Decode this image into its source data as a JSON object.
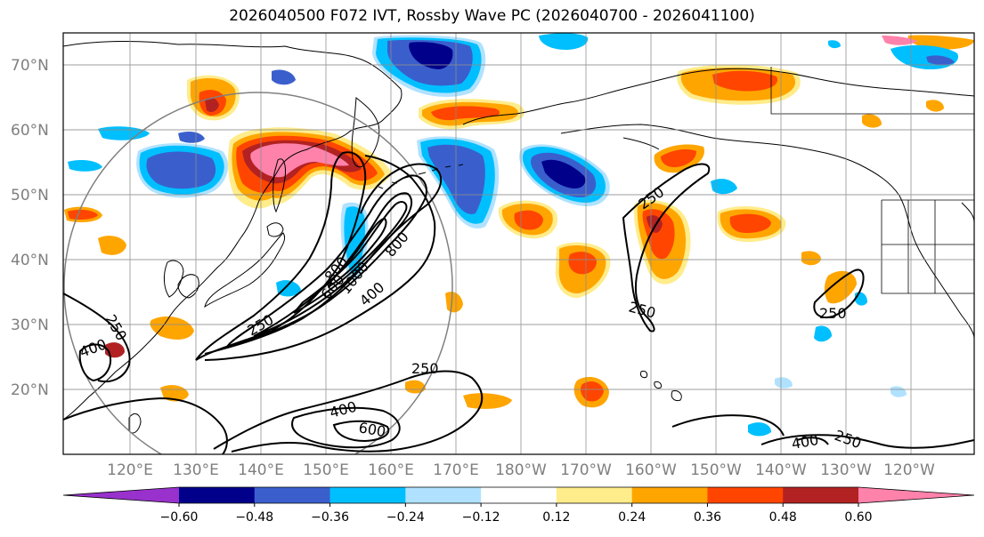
{
  "title": "2026040500 F072 IVT, Rossby Wave PC (2026040700 - 2026041100)",
  "lat_labels": [
    "70°N",
    "60°N",
    "50°N",
    "40°N",
    "30°N",
    "20°N"
  ],
  "lon_labels": [
    "120°E",
    "130°E",
    "140°E",
    "150°E",
    "160°E",
    "170°E",
    "180°W",
    "170°W",
    "160°W",
    "150°W",
    "140°W",
    "130°W",
    "120°W"
  ],
  "contour_labels": [
    "250",
    "400",
    "600",
    "800",
    "1000",
    "800",
    "400",
    "250",
    "250",
    "400",
    "250",
    "250",
    "400",
    "600",
    "400",
    "250",
    "250",
    "250"
  ],
  "colorbar": {
    "tick_labels": [
      "−0.60",
      "−0.48",
      "−0.36",
      "−0.24",
      "−0.12",
      "0.12",
      "0.24",
      "0.36",
      "0.48",
      "0.60"
    ],
    "colors": [
      "#9932cc",
      "#00008b",
      "#3a5fcd",
      "#00bfff",
      "#b0e2ff",
      "#ffffff",
      "#ffec8b",
      "#ffa500",
      "#ff4500",
      "#b22222",
      "#ff82ab"
    ]
  },
  "colors": {
    "pos_low": "#ffec8b",
    "pos_mid": "#ffa500",
    "pos_high": "#ff4500",
    "pos_higher": "#b22222",
    "pos_max": "#ff82ab",
    "neg_low": "#b0e2ff",
    "neg_mid": "#00bfff",
    "neg_high": "#3a5fcd",
    "neg_higher": "#00008b",
    "neg_max": "#9932cc"
  }
}
